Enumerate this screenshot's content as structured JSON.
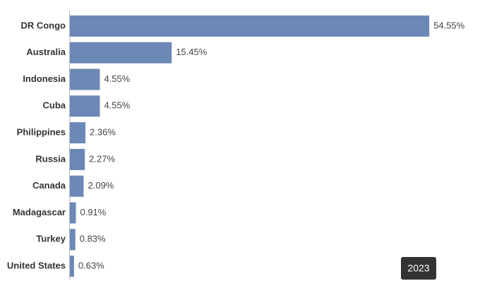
{
  "chart_data": {
    "type": "bar",
    "orientation": "horizontal",
    "categories": [
      "DR Congo",
      "Australia",
      "Indonesia",
      "Cuba",
      "Philippines",
      "Russia",
      "Canada",
      "Madagascar",
      "Turkey",
      "United States"
    ],
    "values": [
      54.55,
      15.45,
      4.55,
      4.55,
      2.36,
      2.27,
      2.09,
      0.91,
      0.83,
      0.63
    ],
    "value_labels": [
      "54.55%",
      "15.45%",
      "4.55%",
      "4.55%",
      "2.36%",
      "2.27%",
      "2.09%",
      "0.91%",
      "0.83%",
      "0.63%"
    ],
    "color": "#6b88b6",
    "xlim": [
      0,
      60
    ],
    "annotation": "2023"
  }
}
